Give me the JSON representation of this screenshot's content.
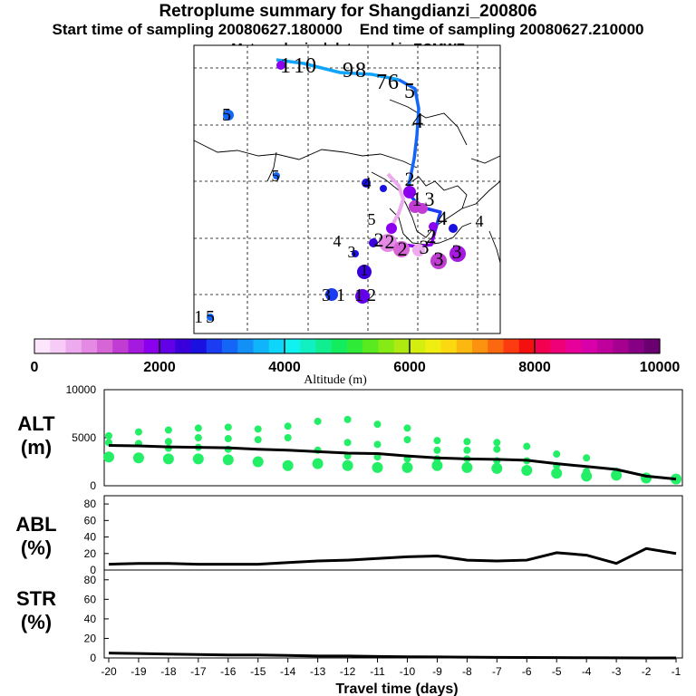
{
  "header": {
    "title": "Retroplume summary for Shangdianzi_200806",
    "start_label": "Start time of sampling 20080627.180000",
    "end_label": "End time of sampling 20080627.210000",
    "met_label": "Meteorological data used is ECMWF"
  },
  "map": {
    "day_labels": [
      "1",
      "2",
      "3",
      "4",
      "5",
      "6",
      "7",
      "8",
      "9",
      "10",
      "11",
      "12",
      "13",
      "14",
      "15",
      "4",
      "5",
      "5",
      "4",
      "3",
      "5",
      "4",
      "3",
      "2",
      "1",
      "13",
      "12",
      "11",
      "10",
      "9",
      "8",
      "7",
      "6",
      "5",
      "4",
      "3",
      "2",
      "1"
    ]
  },
  "colorbar": {
    "ticks": [
      "0",
      "2000",
      "4000",
      "6000",
      "8000",
      "10000"
    ],
    "label": "Altitude (m)",
    "colors": [
      "#fde6fd",
      "#f6ccf6",
      "#eeaaee",
      "#e48ae4",
      "#d666d6",
      "#c03cd2",
      "#a61ae0",
      "#8a00ee",
      "#6200e8",
      "#3a00dc",
      "#1a10e0",
      "#1a3cf2",
      "#1466f6",
      "#1290f8",
      "#10b4fa",
      "#0ed6fa",
      "#10f2f0",
      "#10f0c0",
      "#10ee90",
      "#14ec60",
      "#30ea38",
      "#5aea20",
      "#86ea14",
      "#aeea10",
      "#d4ee10",
      "#f0ee10",
      "#fcd810",
      "#fcb810",
      "#fc9210",
      "#fc6810",
      "#fc3c10",
      "#f41010",
      "#f40050",
      "#f00078",
      "#e8009a",
      "#d800a8",
      "#c0009c",
      "#a60090",
      "#860084",
      "#6a0070"
    ]
  },
  "panels": {
    "alt": {
      "name": "ALT",
      "unit": "(m)"
    },
    "abl": {
      "name": "ABL",
      "unit": "(%)"
    },
    "str": {
      "name": "STR",
      "unit": "(%)"
    },
    "xlabel": "Travel time (days)"
  },
  "chart_data": [
    {
      "type": "line",
      "panel": "ALT",
      "ylabel": "ALT (m)",
      "xlabel": "Travel time (days)",
      "ylim": [
        0,
        10000
      ],
      "yticks": [
        0,
        5000,
        10000
      ],
      "xticks": [
        -20,
        -19,
        -18,
        -17,
        -16,
        -15,
        -14,
        -13,
        -12,
        -11,
        -10,
        -9,
        -8,
        -7,
        -6,
        -5,
        -4,
        -3,
        -2,
        -1
      ],
      "x": [
        -20,
        -19,
        -18,
        -17,
        -16,
        -15,
        -14,
        -13,
        -12,
        -11,
        -10,
        -9,
        -8,
        -7,
        -6,
        -5,
        -4,
        -3,
        -2,
        -1
      ],
      "mean_altitude": [
        4200,
        4150,
        4050,
        4000,
        3950,
        3800,
        3700,
        3550,
        3400,
        3350,
        3100,
        2900,
        2800,
        2750,
        2650,
        2300,
        2000,
        1700,
        1000,
        700
      ],
      "cluster_altitudes": {
        "-20": [
          5200,
          4500,
          3000
        ],
        "-19": [
          5600,
          4400,
          2900
        ],
        "-18": [
          5800,
          4600,
          3900,
          2800
        ],
        "-17": [
          6000,
          5000,
          4000,
          2800
        ],
        "-16": [
          6100,
          4900,
          3800,
          2700
        ],
        "-15": [
          5900,
          4800,
          2500
        ],
        "-14": [
          6200,
          5000,
          2100
        ],
        "-13": [
          6700,
          3700,
          2300
        ],
        "-12": [
          6900,
          4500,
          3100,
          2100
        ],
        "-11": [
          6400,
          4300,
          3000,
          1900
        ],
        "-10": [
          6000,
          4800,
          2800,
          1900
        ],
        "-9": [
          4700,
          3700,
          2800,
          2100
        ],
        "-8": [
          4600,
          3700,
          2800,
          1900
        ],
        "-7": [
          4500,
          3800,
          2600,
          1800
        ],
        "-6": [
          4100,
          2600,
          1600
        ],
        "-5": [
          3300,
          2100,
          1300
        ],
        "-4": [
          2900,
          1500,
          1000
        ],
        "-3": [
          1500,
          1100
        ],
        "-2": [
          800
        ],
        "-1": [
          700
        ]
      }
    },
    {
      "type": "line",
      "panel": "ABL",
      "ylabel": "ABL (%)",
      "ylim": [
        0,
        90
      ],
      "yticks": [
        0,
        20,
        40,
        60,
        80
      ],
      "x": [
        -20,
        -19,
        -18,
        -17,
        -16,
        -15,
        -14,
        -13,
        -12,
        -11,
        -10,
        -9,
        -8,
        -7,
        -6,
        -5,
        -4,
        -3,
        -2,
        -1
      ],
      "values": [
        7,
        8,
        8,
        7,
        7,
        7,
        9,
        11,
        12,
        14,
        16,
        17,
        12,
        11,
        12,
        21,
        18,
        8,
        26,
        20
      ]
    },
    {
      "type": "line",
      "panel": "STR",
      "ylabel": "STR (%)",
      "ylim": [
        0,
        90
      ],
      "yticks": [
        0,
        20,
        40,
        60,
        80
      ],
      "x": [
        -20,
        -19,
        -18,
        -17,
        -16,
        -15,
        -14,
        -13,
        -12,
        -11,
        -10,
        -9,
        -8,
        -7,
        -6,
        -5,
        -4,
        -3,
        -2,
        -1
      ],
      "values": [
        5,
        4.5,
        4,
        3.5,
        3,
        3,
        2.5,
        2,
        2,
        1.5,
        1.2,
        1,
        0.8,
        0.6,
        0.5,
        0.3,
        0.2,
        0.1,
        0,
        0
      ]
    }
  ]
}
